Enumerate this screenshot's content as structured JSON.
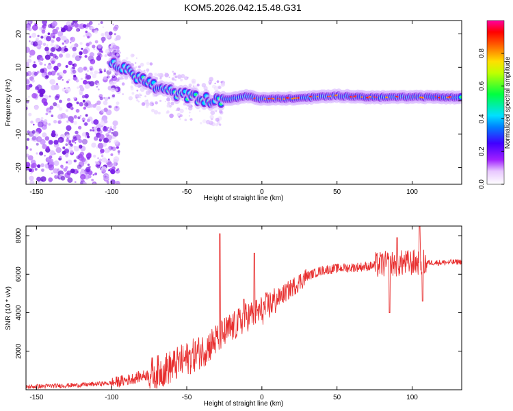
{
  "title": "KOM5.2026.042.15.48.G31",
  "chart_data": [
    {
      "type": "heatmap",
      "title": "KOM5.2026.042.15.48.G31",
      "xlabel": "Height of straight line (km)",
      "ylabel": "Frequency (Hz)",
      "xlim": [
        -157,
        133
      ],
      "ylim": [
        -25,
        24
      ],
      "x_ticks": [
        "-150",
        "-100",
        "-50",
        "0",
        "50",
        "100"
      ],
      "y_ticks": [
        "20",
        "10",
        "0",
        "-10",
        "-20"
      ],
      "colorbar": {
        "label": "Normalized spectral amplitude",
        "range": [
          0,
          1
        ],
        "ticks": [
          "0.0",
          "0.2",
          "0.4",
          "0.6",
          "0.8"
        ]
      },
      "ridge": [
        {
          "x": -100,
          "f": 11.5
        },
        {
          "x": -90,
          "f": 9
        },
        {
          "x": -80,
          "f": 6.5
        },
        {
          "x": -70,
          "f": 4
        },
        {
          "x": -60,
          "f": 2.5
        },
        {
          "x": -50,
          "f": 1.5
        },
        {
          "x": -40,
          "f": 0.5
        },
        {
          "x": -30,
          "f": 0
        },
        {
          "x": -20,
          "f": 0.5
        },
        {
          "x": -10,
          "f": 1.5
        },
        {
          "x": 0,
          "f": 0.5
        },
        {
          "x": 25,
          "f": 0.8
        },
        {
          "x": 50,
          "f": 1.5
        },
        {
          "x": 75,
          "f": 1
        },
        {
          "x": 100,
          "f": 1.2
        },
        {
          "x": 133,
          "f": 1
        }
      ]
    },
    {
      "type": "line",
      "xlabel": "Height of straight line (km)",
      "ylabel": "SNR (10 * v/v)",
      "xlim": [
        -157,
        133
      ],
      "ylim": [
        0,
        8500
      ],
      "x_ticks": [
        "-150",
        "-100",
        "-50",
        "0",
        "50",
        "100"
      ],
      "y_ticks": [
        "2000",
        "4000",
        "6000",
        "8000"
      ],
      "color": "#e83030",
      "series": [
        {
          "name": "SNR",
          "x": [
            -157,
            -140,
            -120,
            -100,
            -90,
            -80,
            -70,
            -60,
            -50,
            -40,
            -30,
            -20,
            -10,
            0,
            10,
            20,
            30,
            40,
            50,
            60,
            70,
            80,
            90,
            100,
            110,
            120,
            133
          ],
          "y": [
            150,
            200,
            250,
            350,
            500,
            700,
            900,
            1200,
            1600,
            2000,
            2600,
            3200,
            3800,
            4100,
            4700,
            5300,
            5900,
            6200,
            6300,
            6350,
            6400,
            6500,
            6550,
            6600,
            6600,
            6600,
            6650
          ]
        }
      ],
      "spikes": [
        {
          "x": -28,
          "y": 8100
        },
        {
          "x": -5,
          "y": 7100
        },
        {
          "x": -12,
          "y": 4700
        },
        {
          "x": 85,
          "y": 4000
        },
        {
          "x": 90,
          "y": 7900
        },
        {
          "x": 105,
          "y": 8500
        },
        {
          "x": 107,
          "y": 4600
        }
      ]
    }
  ]
}
